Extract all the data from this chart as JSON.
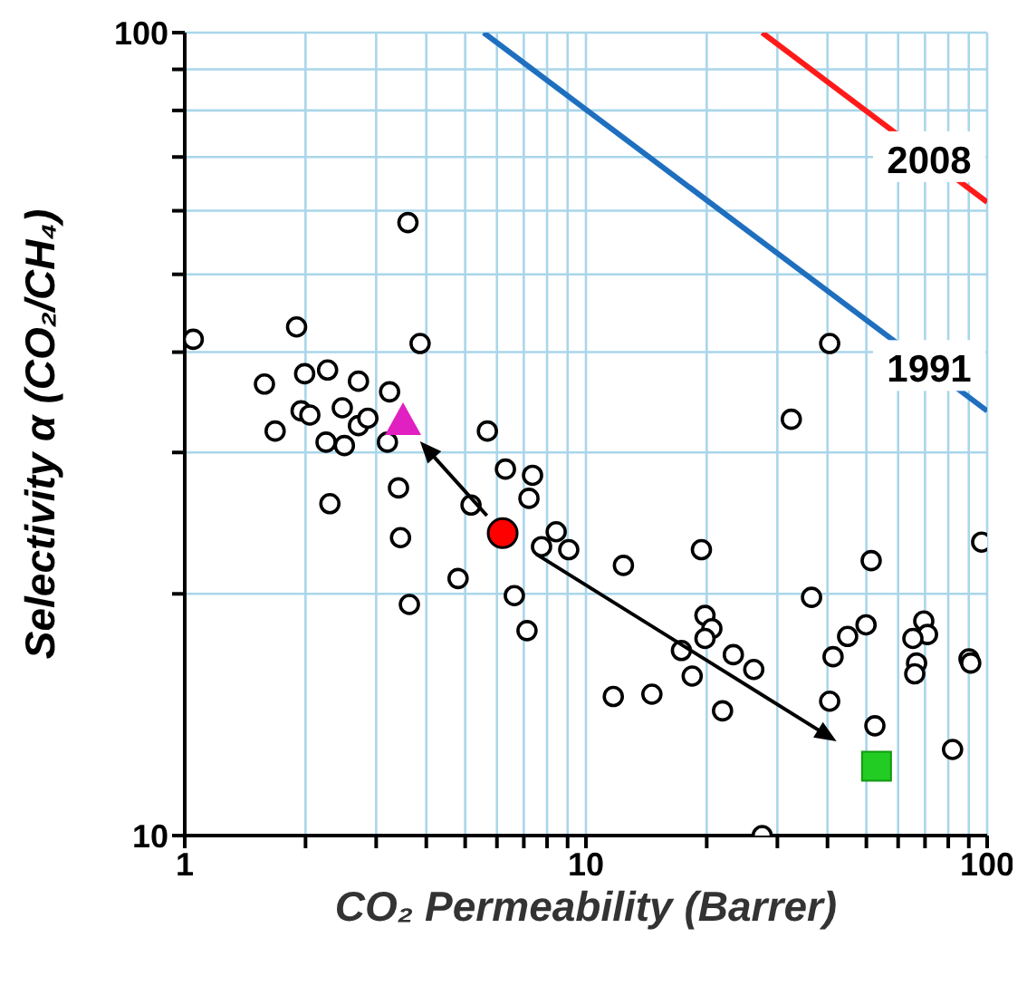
{
  "chart_data": {
    "type": "scatter",
    "xlabel": "CO₂ Permeability (Barrer)",
    "ylabel": "Selectivity α (CO₂/CH₄)",
    "log": "xy",
    "grid": true,
    "xlim": [
      1,
      100
    ],
    "ylim": [
      10,
      100
    ],
    "xticks": [
      1,
      {
        "value": 2,
        "label": null
      },
      {
        "value": 3,
        "label": null
      },
      {
        "value": 4,
        "label": null
      },
      {
        "value": 5,
        "label": null
      },
      {
        "value": 6,
        "label": null
      },
      {
        "value": 7,
        "label": null
      },
      {
        "value": 8,
        "label": null
      },
      {
        "value": 9,
        "label": null
      },
      10,
      {
        "value": 20,
        "label": null
      },
      {
        "value": 30,
        "label": null
      },
      {
        "value": 40,
        "label": null
      },
      {
        "value": 50,
        "label": null
      },
      {
        "value": 60,
        "label": null
      },
      {
        "value": 70,
        "label": null
      },
      {
        "value": 80,
        "label": null
      },
      {
        "value": 90,
        "label": null
      },
      100
    ],
    "yticks": [
      10,
      {
        "value": 20,
        "label": null
      },
      {
        "value": 30,
        "label": null
      },
      {
        "value": 40,
        "label": null
      },
      {
        "value": 50,
        "label": null
      },
      {
        "value": 60,
        "label": null
      },
      {
        "value": 70,
        "label": null
      },
      {
        "value": 80,
        "label": null
      },
      {
        "value": 90,
        "label": null
      },
      100
    ],
    "series": [
      {
        "marker": "circle",
        "color": "#000000",
        "x": [
          1.05,
          1.9,
          3.6,
          3.86,
          1.58,
          1.99,
          2.27,
          2.71,
          3.24,
          1.68,
          1.95,
          2.05,
          2.47,
          2.71,
          2.86,
          2.25,
          2.5,
          3.2,
          2.3,
          3.41,
          3.45,
          3.63,
          5.68,
          5.17,
          6.3,
          7.36,
          7.21,
          8.43,
          9.06,
          7.75,
          4.8,
          6.63,
          7.13,
          40.5,
          32.5,
          12.4,
          19.4,
          51.4,
          96.9,
          36.5,
          19.8,
          20.6,
          19.8,
          17.3,
          23.3,
          26.2,
          18.4,
          11.7,
          14.6,
          21.9,
          49.9,
          44.9,
          41.3,
          40.5,
          52.5,
          69.5,
          71,
          65.3,
          66.7,
          66,
          90.1,
          91,
          82,
          27.5
        ],
        "values": [
          41.5,
          43,
          58,
          41,
          36.5,
          37.6,
          38,
          36.8,
          35.7,
          31.9,
          33.8,
          33.4,
          34.1,
          32.4,
          33.1,
          30.9,
          30.6,
          30.9,
          25.9,
          27.1,
          23.5,
          19.4,
          31.9,
          25.8,
          28.6,
          28.1,
          26.3,
          23.9,
          22.7,
          22.9,
          20.9,
          19.9,
          18,
          41,
          33,
          21.7,
          22.7,
          22,
          23.2,
          19.8,
          18.8,
          18.1,
          17.6,
          17,
          16.8,
          16.1,
          15.8,
          14.9,
          15,
          14.3,
          18.3,
          17.7,
          16.7,
          14.7,
          13.7,
          18.5,
          17.8,
          17.6,
          16.4,
          15.9,
          16.6,
          16.4,
          12.8,
          10
        ]
      },
      {
        "marker": "circle",
        "color": "#ff0000",
        "x": [
          6.2
        ],
        "values": [
          23.8
        ]
      },
      {
        "marker": "triangle",
        "color": "#e020c0",
        "x": [
          3.5
        ],
        "values": [
          32.7
        ]
      },
      {
        "marker": "square",
        "color": "#22cc22",
        "x": [
          53
        ],
        "values": [
          12.2
        ]
      },
      {
        "type": "line",
        "name": "1991",
        "color": "#1f6fbf",
        "x": [
          5.56,
          100
        ],
        "values": [
          100,
          33.8
        ]
      },
      {
        "type": "line",
        "name": "2008",
        "color": "#ff1a1a",
        "x": [
          27.5,
          100
        ],
        "values": [
          100,
          61.5
        ]
      }
    ]
  }
}
